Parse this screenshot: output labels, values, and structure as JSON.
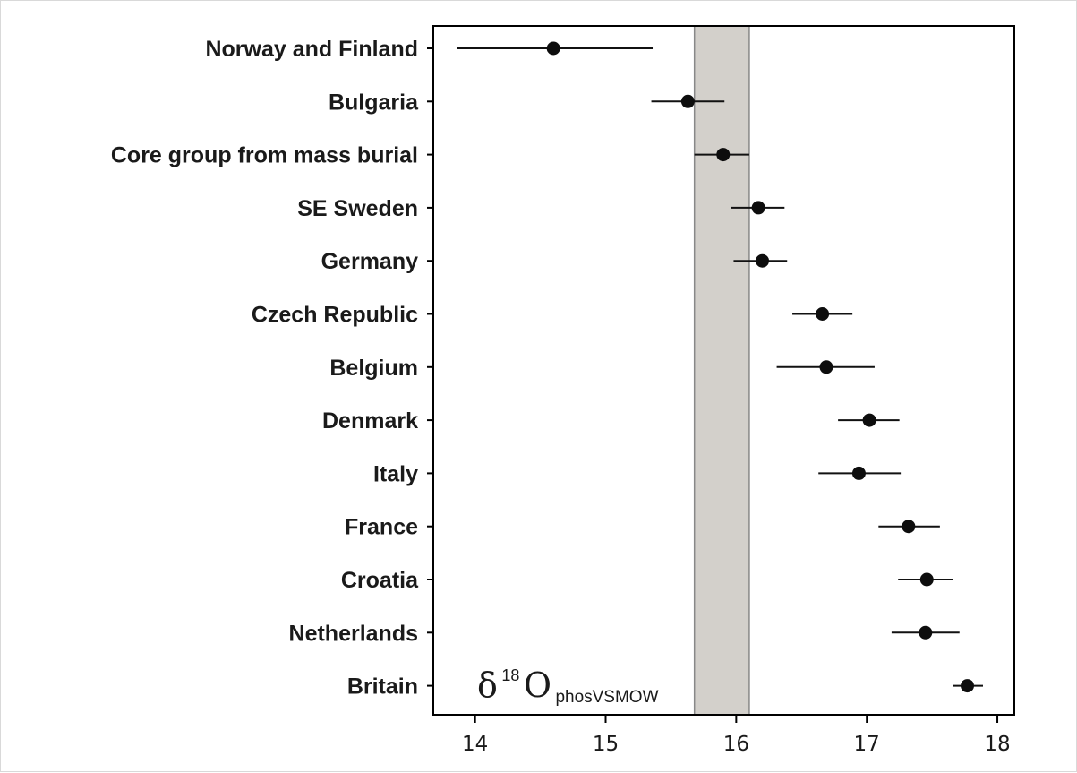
{
  "chart_data": {
    "type": "scatter",
    "orientation": "horizontal-dot-with-error-bars",
    "categories": [
      "Norway and Finland",
      "Bulgaria",
      "Core group from mass burial",
      "SE Sweden",
      "Germany",
      "Czech Republic",
      "Belgium",
      "Denmark",
      "Italy",
      "France",
      "Croatia",
      "Netherlands",
      "Britain"
    ],
    "series": [
      {
        "values": [
          14.6,
          15.63,
          15.9,
          16.17,
          16.2,
          16.66,
          16.69,
          17.02,
          16.94,
          17.32,
          17.46,
          17.45,
          17.77
        ],
        "error_low": [
          13.86,
          15.35,
          15.68,
          15.96,
          15.98,
          16.43,
          16.31,
          16.78,
          16.63,
          17.09,
          17.24,
          17.19,
          17.66
        ],
        "error_high": [
          15.36,
          15.91,
          16.1,
          16.37,
          16.39,
          16.89,
          17.06,
          17.25,
          17.26,
          17.56,
          17.66,
          17.71,
          17.89
        ]
      }
    ],
    "shaded_band": {
      "from": 15.68,
      "to": 16.1,
      "color": "#d3d0cb"
    },
    "xlim": [
      13.68,
      18.13
    ],
    "xticks": [
      14,
      15,
      16,
      17,
      18
    ],
    "xtick_labels": [
      "14",
      "15",
      "16",
      "17",
      "18"
    ],
    "xlabel": "",
    "ylabel": "",
    "title": "",
    "grid": false,
    "legend": "none",
    "annotation": {
      "delta": "δ",
      "sup": "18",
      "element": "O",
      "sub": "phosVSMOW",
      "placement": "bottom-left"
    },
    "colors": {
      "marker": "#0d0d0d",
      "line": "#111111",
      "band": "#d3d0cb",
      "band_edge": "#888888"
    }
  }
}
